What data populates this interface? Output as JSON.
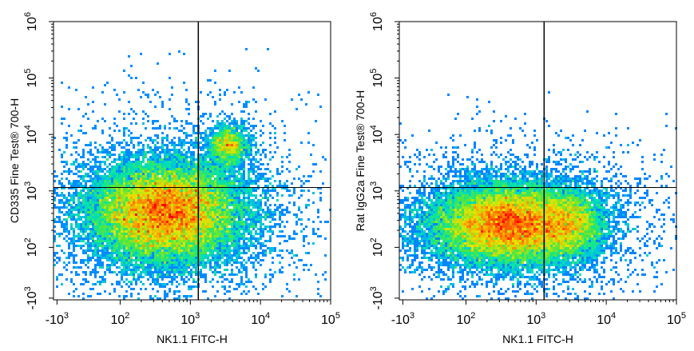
{
  "chart_data": [
    {
      "type": "scatter",
      "subtype": "flow-cytometry-density",
      "xlabel": "NK1.1 FITC-H",
      "ylabel": "CD335 Fine Test® 700-H",
      "x_scale": "biexponential",
      "y_scale": "biexponential",
      "xlim": [
        -1000,
        100000
      ],
      "ylim": [
        -1000,
        1000000
      ],
      "x_ticks": [
        {
          "base": "-10",
          "exp": "3",
          "value": -1000
        },
        {
          "base": "10",
          "exp": "2",
          "value": 100
        },
        {
          "base": "10",
          "exp": "3",
          "value": 1000
        },
        {
          "base": "10",
          "exp": "4",
          "value": 10000
        },
        {
          "base": "10",
          "exp": "5",
          "value": 100000
        }
      ],
      "y_ticks": [
        {
          "base": "-10",
          "exp": "3",
          "value": -1000
        },
        {
          "base": "10",
          "exp": "2",
          "value": 100
        },
        {
          "base": "10",
          "exp": "3",
          "value": 1000
        },
        {
          "base": "10",
          "exp": "4",
          "value": 10000
        },
        {
          "base": "10",
          "exp": "5",
          "value": 100000
        },
        {
          "base": "10",
          "exp": "6",
          "value": 1000000
        }
      ],
      "quadrant_gate": {
        "x": 1300,
        "y": 1150
      },
      "populations": [
        {
          "x_center": 450,
          "y_center": 420,
          "x_spread_decades": 0.55,
          "y_spread_decades": 0.45,
          "weight": 0.9
        },
        {
          "x_center": 3500,
          "y_center": 6500,
          "x_spread_decades": 0.15,
          "y_spread_decades": 0.18,
          "weight": 0.06
        }
      ],
      "legend": "none",
      "grid": false
    },
    {
      "type": "scatter",
      "subtype": "flow-cytometry-density",
      "xlabel": "NK1.1 FITC-H",
      "ylabel": "Rat IgG2a Fine Test® 700-H",
      "x_scale": "biexponential",
      "y_scale": "biexponential",
      "xlim": [
        -1000,
        100000
      ],
      "ylim": [
        -1000,
        1000000
      ],
      "x_ticks": [
        {
          "base": "-10",
          "exp": "3",
          "value": -1000
        },
        {
          "base": "10",
          "exp": "2",
          "value": 100
        },
        {
          "base": "10",
          "exp": "3",
          "value": 1000
        },
        {
          "base": "10",
          "exp": "4",
          "value": 10000
        },
        {
          "base": "10",
          "exp": "5",
          "value": 100000
        }
      ],
      "y_ticks": [
        {
          "base": "-10",
          "exp": "3",
          "value": -1000
        },
        {
          "base": "10",
          "exp": "2",
          "value": 100
        },
        {
          "base": "10",
          "exp": "3",
          "value": 1000
        },
        {
          "base": "10",
          "exp": "4",
          "value": 10000
        },
        {
          "base": "10",
          "exp": "5",
          "value": 100000
        },
        {
          "base": "10",
          "exp": "6",
          "value": 1000000
        }
      ],
      "quadrant_gate": {
        "x": 1300,
        "y": 1150
      },
      "populations": [
        {
          "x_center": 420,
          "y_center": 260,
          "x_spread_decades": 0.55,
          "y_spread_decades": 0.35,
          "weight": 0.88
        },
        {
          "x_center": 3200,
          "y_center": 250,
          "x_spread_decades": 0.22,
          "y_spread_decades": 0.3,
          "weight": 0.12
        }
      ],
      "legend": "none",
      "grid": false
    }
  ],
  "colors": {
    "density_low": "#0000ff",
    "density_mid": "#00ff80",
    "density_high": "#ff0000",
    "axis": "#000000",
    "gate_line": "#000000"
  }
}
